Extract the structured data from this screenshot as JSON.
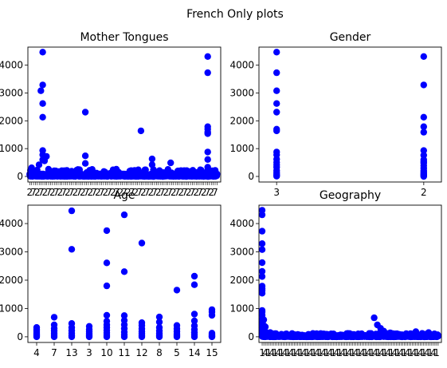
{
  "suptitle": "French Only plots",
  "colors": {
    "marker": "#0000ff"
  },
  "chart_data": [
    {
      "type": "scatter",
      "title": "Mother Tongues",
      "x_tick_labels": [
        "2",
        "7"
      ],
      "y_ticks": [
        0,
        1000,
        2000,
        3000,
        4000
      ],
      "ylim": [
        -200,
        4650
      ],
      "xlim": [
        -1,
        103
      ],
      "dense_x_ticks": {
        "count": 100,
        "from": 0,
        "to": 101
      },
      "bulk": {
        "x_from": 0,
        "x_to": 101,
        "n": 520,
        "y_max": 60,
        "seed": 11
      },
      "base": {
        "x_from": 0,
        "x_to": 101,
        "y_max": 260,
        "n": 520
      },
      "x": [
        6,
        7,
        7,
        7,
        7,
        7,
        7,
        7,
        4,
        5,
        8,
        9,
        30,
        30,
        30,
        60,
        66,
        66,
        96,
        96,
        96,
        96,
        96,
        96,
        96,
        96,
        96,
        96,
        1,
        2,
        3,
        10,
        12,
        14,
        16,
        18,
        20,
        22,
        26,
        32,
        36,
        40,
        44,
        48,
        55,
        70,
        72,
        76,
        80,
        84,
        88,
        92,
        98,
        100
      ],
      "y": [
        3080,
        4470,
        3290,
        2620,
        2130,
        930,
        780,
        600,
        230,
        420,
        560,
        720,
        2310,
        740,
        470,
        1640,
        630,
        420,
        4310,
        3730,
        1790,
        1700,
        1590,
        1540,
        880,
        610,
        330,
        220,
        310,
        200,
        120,
        150,
        120,
        200,
        160,
        110,
        220,
        140,
        250,
        170,
        120,
        180,
        130,
        150,
        100,
        210,
        140,
        490,
        200,
        120,
        160,
        240,
        180,
        120
      ]
    },
    {
      "type": "scatter",
      "title": "Gender",
      "categories": [
        "3",
        "2"
      ],
      "x": [
        0,
        0,
        0,
        0,
        0,
        0,
        0,
        0,
        0,
        0,
        0,
        0,
        0,
        0,
        0,
        0,
        0,
        0,
        1,
        1,
        1,
        1,
        1,
        1,
        1,
        1,
        1,
        1,
        1,
        1,
        1,
        1,
        1,
        1,
        1,
        1
      ],
      "y": [
        4470,
        3730,
        3080,
        2620,
        2310,
        1700,
        1640,
        880,
        780,
        620,
        510,
        420,
        330,
        220,
        150,
        90,
        40,
        10,
        4310,
        3290,
        2130,
        1790,
        1590,
        930,
        760,
        600,
        530,
        480,
        390,
        300,
        220,
        160,
        110,
        70,
        30,
        0
      ],
      "y_ticks": [
        0,
        1000,
        2000,
        3000,
        4000
      ],
      "ylim": [
        -200,
        4650
      ],
      "xlim": [
        -0.12,
        1.12
      ]
    },
    {
      "type": "scatter",
      "title": "Age",
      "categories": [
        "4",
        "7",
        "13",
        "3",
        "10",
        "11",
        "12",
        "8",
        "5",
        "14",
        "15"
      ],
      "x": [
        0,
        0,
        0,
        0,
        0,
        0,
        0,
        1,
        1,
        1,
        1,
        1,
        1,
        1,
        2,
        2,
        2,
        2,
        2,
        2,
        2,
        2,
        3,
        3,
        3,
        3,
        3,
        3,
        3,
        4,
        4,
        4,
        4,
        4,
        4,
        4,
        4,
        4,
        4,
        4,
        5,
        5,
        5,
        5,
        5,
        5,
        5,
        5,
        5,
        6,
        6,
        6,
        6,
        6,
        6,
        6,
        6,
        7,
        7,
        7,
        7,
        7,
        7,
        7,
        8,
        8,
        8,
        8,
        8,
        8,
        8,
        9,
        9,
        9,
        9,
        9,
        9,
        9,
        9,
        9,
        10,
        10,
        10,
        10,
        10,
        10,
        10,
        10
      ],
      "y": [
        330,
        260,
        200,
        140,
        90,
        40,
        0,
        690,
        420,
        300,
        210,
        130,
        60,
        0,
        4450,
        3090,
        470,
        330,
        220,
        130,
        50,
        0,
        370,
        260,
        180,
        120,
        70,
        30,
        0,
        3750,
        2610,
        1800,
        760,
        550,
        420,
        330,
        230,
        140,
        60,
        0,
        4310,
        2300,
        750,
        580,
        430,
        290,
        170,
        70,
        0,
        3310,
        500,
        400,
        280,
        190,
        110,
        40,
        0,
        700,
        520,
        330,
        210,
        110,
        40,
        0,
        1650,
        400,
        280,
        180,
        100,
        40,
        0,
        2140,
        1840,
        800,
        560,
        390,
        260,
        150,
        70,
        0,
        960,
        880,
        760,
        130,
        80,
        40,
        10,
        0
      ],
      "y_ticks": [
        0,
        1000,
        2000,
        3000,
        4000
      ],
      "ylim": [
        -200,
        4650
      ],
      "xlim": [
        -0.5,
        10.5
      ]
    },
    {
      "type": "scatter",
      "title": "Geography",
      "x_tick_labels": [
        "1",
        "4"
      ],
      "y_ticks": [
        0,
        1000,
        2000,
        3000,
        4000
      ],
      "ylim": [
        -200,
        4650
      ],
      "xlim": [
        -2,
        112
      ],
      "dense_x_ticks": {
        "count": 110,
        "from": 0,
        "to": 110
      },
      "bulk": {
        "x_from": 0,
        "x_to": 110,
        "n": 560,
        "y_max": 50,
        "seed": 29
      },
      "base": {
        "x_from": 0,
        "x_to": 110,
        "y_max": 120,
        "n": 560
      },
      "x": [
        0,
        0,
        0,
        0,
        0,
        0,
        0,
        0,
        0,
        0,
        0,
        0,
        0,
        0,
        0,
        0,
        0,
        0,
        0,
        0,
        0,
        1,
        1,
        1,
        1,
        2,
        2,
        3,
        5,
        8,
        12,
        20,
        30,
        40,
        50,
        60,
        68,
        70,
        72,
        74,
        76,
        78,
        80,
        85,
        90,
        96,
        100,
        104,
        108
      ],
      "y": [
        4470,
        4310,
        3730,
        3290,
        3080,
        2620,
        2310,
        2130,
        1790,
        1700,
        1640,
        1540,
        930,
        880,
        760,
        630,
        510,
        420,
        330,
        230,
        120,
        600,
        400,
        250,
        150,
        350,
        180,
        120,
        150,
        110,
        90,
        80,
        70,
        90,
        60,
        80,
        120,
        670,
        420,
        300,
        200,
        110,
        140,
        90,
        110,
        180,
        120,
        150,
        90
      ]
    }
  ]
}
